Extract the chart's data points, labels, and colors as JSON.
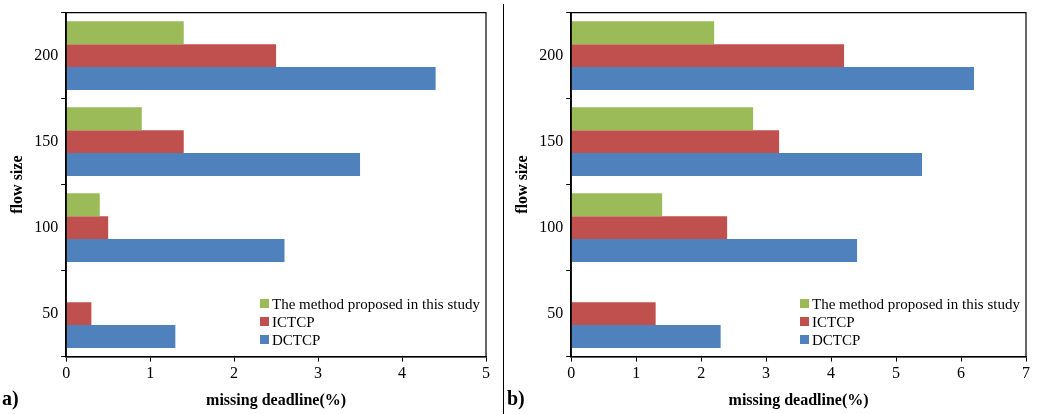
{
  "chart_data": [
    {
      "type": "bar",
      "orientation": "horizontal",
      "xlabel": "missing deadline(%)",
      "ylabel": "flow size",
      "categories": [
        "200",
        "150",
        "100",
        "50"
      ],
      "xlim": [
        0,
        5
      ],
      "xticks": [
        0,
        1,
        2,
        3,
        4,
        5
      ],
      "grid": false,
      "legend": "bottom right",
      "annotations": [
        "a)"
      ],
      "series": [
        {
          "name": "The method proposed in this study",
          "color": "#9bbb59",
          "values": [
            1.4,
            0.9,
            0.4,
            0
          ]
        },
        {
          "name": "ICTCP",
          "color": "#c0504d",
          "values": [
            2.5,
            1.4,
            0.5,
            0.3
          ]
        },
        {
          "name": "DCTCP",
          "color": "#4f81bd",
          "values": [
            4.4,
            3.5,
            2.6,
            1.3
          ]
        }
      ]
    },
    {
      "type": "bar",
      "orientation": "horizontal",
      "xlabel": "missing deadline(%)",
      "ylabel": "flow size",
      "categories": [
        "200",
        "150",
        "100",
        "50"
      ],
      "xlim": [
        0,
        7
      ],
      "xticks": [
        0,
        1,
        2,
        3,
        4,
        5,
        6,
        7
      ],
      "grid": false,
      "legend": "bottom right",
      "annotations": [
        "b)"
      ],
      "series": [
        {
          "name": "The method proposed in this study",
          "color": "#9bbb59",
          "values": [
            2.2,
            2.8,
            1.4,
            0
          ]
        },
        {
          "name": "ICTCP",
          "color": "#c0504d",
          "values": [
            4.2,
            3.2,
            2.4,
            1.3
          ]
        },
        {
          "name": "DCTCP",
          "color": "#4f81bd",
          "values": [
            6.2,
            5.4,
            4.4,
            2.3
          ]
        }
      ]
    }
  ]
}
